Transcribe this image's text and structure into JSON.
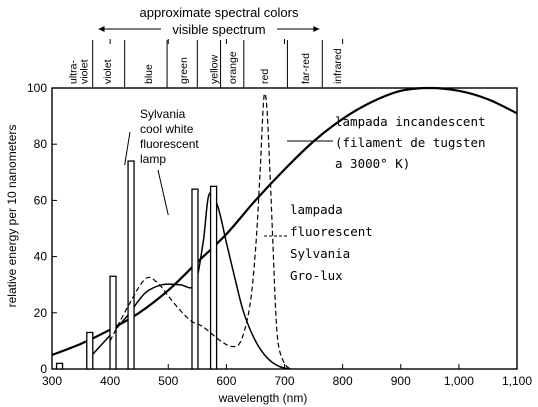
{
  "chart_data": {
    "type": "line",
    "top_title": "approximate spectral colors",
    "visible_label": "visible spectrum",
    "xlabel": "wavelength (nm)",
    "ylabel": "relative energy per 10 nanometers",
    "xlim": [
      300,
      1100
    ],
    "ylim": [
      0,
      100
    ],
    "x_ticks": [
      {
        "value": 300,
        "label": "300"
      },
      {
        "value": 400,
        "label": "400"
      },
      {
        "value": 500,
        "label": "500"
      },
      {
        "value": 600,
        "label": "600"
      },
      {
        "value": 700,
        "label": "700"
      },
      {
        "value": 800,
        "label": "800"
      },
      {
        "value": 900,
        "label": "900"
      },
      {
        "value": 1000,
        "label": "1,000"
      },
      {
        "value": 1100,
        "label": "1,100"
      }
    ],
    "y_ticks": [
      {
        "value": 0,
        "label": "0"
      },
      {
        "value": 20,
        "label": "20"
      },
      {
        "value": 40,
        "label": "40"
      },
      {
        "value": 60,
        "label": "60"
      },
      {
        "value": 80,
        "label": "80"
      },
      {
        "value": 100,
        "label": "100"
      }
    ],
    "color_bands": [
      {
        "label": "ultra-violet",
        "lines": [
          "ultra-",
          "violet"
        ],
        "x": 345
      },
      {
        "label": "violet",
        "lines": [
          "violet"
        ],
        "x": 395
      },
      {
        "label": "blue",
        "lines": [
          "blue"
        ],
        "x": 465
      },
      {
        "label": "green",
        "lines": [
          "green"
        ],
        "x": 525
      },
      {
        "label": "yellow",
        "lines": [
          "yellow"
        ],
        "x": 578
      },
      {
        "label": "orange",
        "lines": [
          "orange"
        ],
        "x": 610
      },
      {
        "label": "red",
        "lines": [
          "red"
        ],
        "x": 665
      },
      {
        "label": "far-red",
        "lines": [
          "far-red"
        ],
        "x": 735
      },
      {
        "label": "infrared",
        "lines": [
          "infrared"
        ],
        "x": 790
      }
    ],
    "band_dividers": [
      370,
      425,
      498,
      550,
      590,
      630,
      705,
      765
    ],
    "visible_range": [
      380,
      760
    ],
    "series": [
      {
        "name": "lampada incandescent (filament de tugsten a 3000° K)",
        "style": "solid-thick",
        "points": [
          [
            300,
            5
          ],
          [
            350,
            9
          ],
          [
            400,
            14
          ],
          [
            450,
            20
          ],
          [
            500,
            28
          ],
          [
            550,
            38
          ],
          [
            600,
            48
          ],
          [
            650,
            60
          ],
          [
            700,
            71
          ],
          [
            750,
            81
          ],
          [
            800,
            89
          ],
          [
            850,
            95
          ],
          [
            900,
            99
          ],
          [
            950,
            100
          ],
          [
            1000,
            99
          ],
          [
            1050,
            96
          ],
          [
            1100,
            91
          ]
        ]
      },
      {
        "name": "Sylvania cool white fluorescent lamp",
        "style": "solid",
        "points": [
          [
            360,
            3
          ],
          [
            400,
            12
          ],
          [
            430,
            19
          ],
          [
            460,
            27
          ],
          [
            490,
            30
          ],
          [
            520,
            30
          ],
          [
            545,
            30
          ],
          [
            560,
            45
          ],
          [
            570,
            62
          ],
          [
            585,
            58
          ],
          [
            600,
            45
          ],
          [
            615,
            32
          ],
          [
            630,
            20
          ],
          [
            650,
            10
          ],
          [
            670,
            4
          ],
          [
            690,
            1
          ],
          [
            710,
            0
          ]
        ],
        "mercury_lines": [
          {
            "x": 313,
            "height": 2
          },
          {
            "x": 365,
            "height": 13
          },
          {
            "x": 405,
            "height": 33
          },
          {
            "x": 436,
            "height": 74
          },
          {
            "x": 546,
            "height": 64
          },
          {
            "x": 578,
            "height": 65
          }
        ]
      },
      {
        "name": "lampada fluorescent Sylvania Gro-lux",
        "style": "dashed",
        "points": [
          [
            400,
            10
          ],
          [
            430,
            22
          ],
          [
            460,
            32
          ],
          [
            480,
            31
          ],
          [
            500,
            26
          ],
          [
            520,
            21
          ],
          [
            540,
            17
          ],
          [
            560,
            15
          ],
          [
            590,
            10
          ],
          [
            610,
            8
          ],
          [
            625,
            10
          ],
          [
            640,
            22
          ],
          [
            650,
            42
          ],
          [
            658,
            70
          ],
          [
            663,
            92
          ],
          [
            666,
            98
          ],
          [
            670,
            92
          ],
          [
            675,
            70
          ],
          [
            680,
            45
          ],
          [
            685,
            20
          ],
          [
            690,
            8
          ],
          [
            700,
            2
          ],
          [
            710,
            0
          ]
        ]
      }
    ],
    "annotations": {
      "cool_white": [
        "Sylvania",
        "cool white",
        "fluorescent",
        "lamp"
      ],
      "incandescent": [
        "lampada incandescent",
        "(filament de tugsten",
        "a 3000° K)"
      ],
      "grolux": [
        "lampada",
        "fluorescent",
        "Sylvania",
        "Gro-lux"
      ]
    },
    "grid": false,
    "legend": "none"
  }
}
